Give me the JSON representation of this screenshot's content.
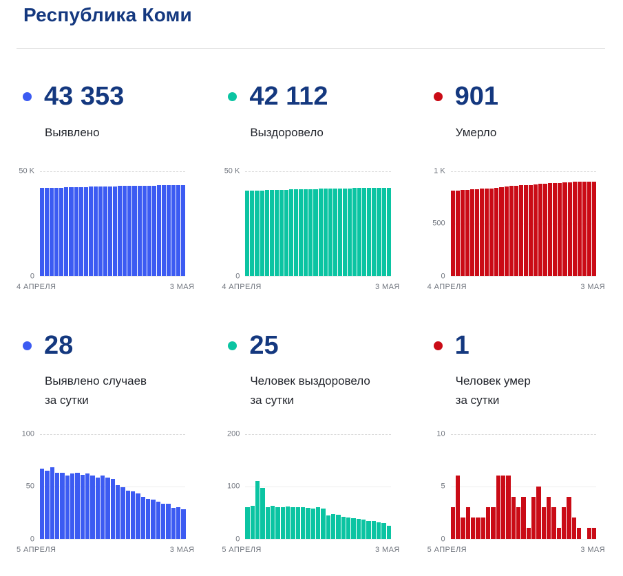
{
  "page": {
    "title": "Республика Коми"
  },
  "colors": {
    "heading": "#14387F",
    "blue": "#3C5BF2",
    "teal": "#0BC4A2",
    "red": "#CA0B16",
    "axis_text": "#70757e"
  },
  "chart_data": [
    {
      "id": "detected-total",
      "type": "bar",
      "stat_value": "43 353",
      "label": "Выявлено",
      "color": "#3C5BF2",
      "ylim": [
        0,
        50000
      ],
      "y_top": "50 K",
      "y_mid": "",
      "y_zero": "0",
      "x_start": "4 АПРЕЛЯ",
      "x_end": "3 МАЯ",
      "values": [
        41889,
        41956,
        42021,
        42089,
        42152,
        42215,
        42275,
        42337,
        42400,
        42461,
        42523,
        42583,
        42641,
        42701,
        42759,
        42816,
        42867,
        42916,
        42962,
        43007,
        43050,
        43090,
        43128,
        43165,
        43200,
        43233,
        43266,
        43295,
        43325,
        43353
      ]
    },
    {
      "id": "recovered-total",
      "type": "bar",
      "stat_value": "42 112",
      "label": "Выздоровело",
      "color": "#0BC4A2",
      "ylim": [
        0,
        50000
      ],
      "y_top": "50 K",
      "y_mid": "",
      "y_zero": "0",
      "x_start": "4 АПРЕЛЯ",
      "x_end": "3 МАЯ",
      "values": [
        40584,
        40644,
        40707,
        40817,
        40914,
        40974,
        41036,
        41096,
        41156,
        41217,
        41277,
        41337,
        41397,
        41456,
        41513,
        41573,
        41630,
        41674,
        41721,
        41766,
        41808,
        41848,
        41887,
        41924,
        41960,
        41994,
        42027,
        42058,
        42087,
        42112
      ]
    },
    {
      "id": "died-total",
      "type": "bar",
      "stat_value": "901",
      "label": "Умерло",
      "color": "#CA0B16",
      "ylim": [
        0,
        1000
      ],
      "y_top": "1 K",
      "y_mid": "500",
      "y_zero": "0",
      "x_start": "4 АПРЕЛЯ",
      "x_end": "3 МАЯ",
      "values": [
        813,
        816,
        822,
        824,
        827,
        829,
        831,
        833,
        836,
        839,
        845,
        851,
        857,
        861,
        864,
        868,
        869,
        873,
        878,
        881,
        885,
        888,
        889,
        892,
        896,
        898,
        899,
        899,
        900,
        901
      ]
    },
    {
      "id": "detected-daily",
      "type": "bar",
      "stat_value": "28",
      "label": "Выявлено случаев\nза сутки",
      "color": "#3C5BF2",
      "ylim": [
        0,
        100
      ],
      "y_top": "100",
      "y_mid": "50",
      "y_zero": "0",
      "x_start": "5 АПРЕЛЯ",
      "x_end": "3 МАЯ",
      "values": [
        67,
        65,
        68,
        63,
        63,
        60,
        62,
        63,
        61,
        62,
        60,
        58,
        60,
        58,
        57,
        51,
        49,
        46,
        45,
        43,
        40,
        38,
        37,
        35,
        33,
        33,
        29,
        30,
        28
      ]
    },
    {
      "id": "recovered-daily",
      "type": "bar",
      "stat_value": "25",
      "label": "Человек выздоровело\nза сутки",
      "color": "#0BC4A2",
      "ylim": [
        0,
        200
      ],
      "y_top": "200",
      "y_mid": "100",
      "y_zero": "0",
      "x_start": "5 АПРЕЛЯ",
      "x_end": "3 МАЯ",
      "values": [
        60,
        63,
        110,
        97,
        60,
        62,
        60,
        60,
        61,
        60,
        60,
        60,
        59,
        57,
        60,
        57,
        44,
        47,
        45,
        42,
        40,
        39,
        37,
        36,
        34,
        33,
        31,
        29,
        25
      ]
    },
    {
      "id": "died-daily",
      "type": "bar",
      "stat_value": "1",
      "label": "Человек умер\nза сутки",
      "color": "#CA0B16",
      "ylim": [
        0,
        10
      ],
      "y_top": "10",
      "y_mid": "5",
      "y_zero": "0",
      "x_start": "5 АПРЕЛЯ",
      "x_end": "3 МАЯ",
      "values": [
        3,
        6,
        2,
        3,
        2,
        2,
        2,
        3,
        3,
        6,
        6,
        6,
        4,
        3,
        4,
        1,
        4,
        5,
        3,
        4,
        3,
        1,
        3,
        4,
        2,
        1,
        0,
        1,
        1
      ]
    }
  ]
}
